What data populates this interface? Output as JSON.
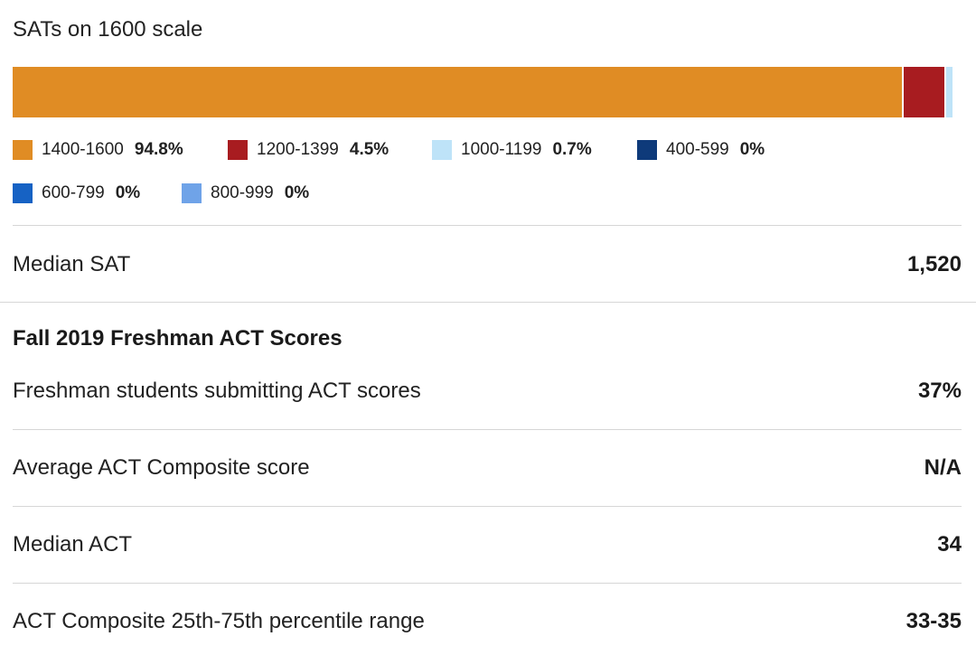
{
  "sat": {
    "title": "SATs on 1600 scale",
    "median_label": "Median SAT",
    "median_value": "1,520"
  },
  "chart_data": {
    "type": "bar",
    "orientation": "horizontal-stacked",
    "title": "SATs on 1600 scale",
    "unit": "%",
    "categories": [
      "1400-1600",
      "1200-1399",
      "1000-1199",
      "400-599",
      "600-799",
      "800-999"
    ],
    "values": [
      94.8,
      4.5,
      0.7,
      0,
      0,
      0
    ],
    "labels": [
      "94.8%",
      "4.5%",
      "0.7%",
      "0%",
      "0%",
      "0%"
    ],
    "colors": [
      "#E08C24",
      "#A81C20",
      "#BEE3F8",
      "#0E3A7A",
      "#1662C4",
      "#6FA3E8"
    ],
    "legend": "bottom"
  },
  "act": {
    "heading": "Fall 2019 Freshman ACT Scores",
    "rows": [
      {
        "label": "Freshman students submitting ACT scores",
        "value": "37%"
      },
      {
        "label": "Average ACT Composite score",
        "value": "N/A"
      },
      {
        "label": "Median ACT",
        "value": "34"
      },
      {
        "label": "ACT Composite 25th-75th percentile range",
        "value": "33-35"
      }
    ]
  }
}
